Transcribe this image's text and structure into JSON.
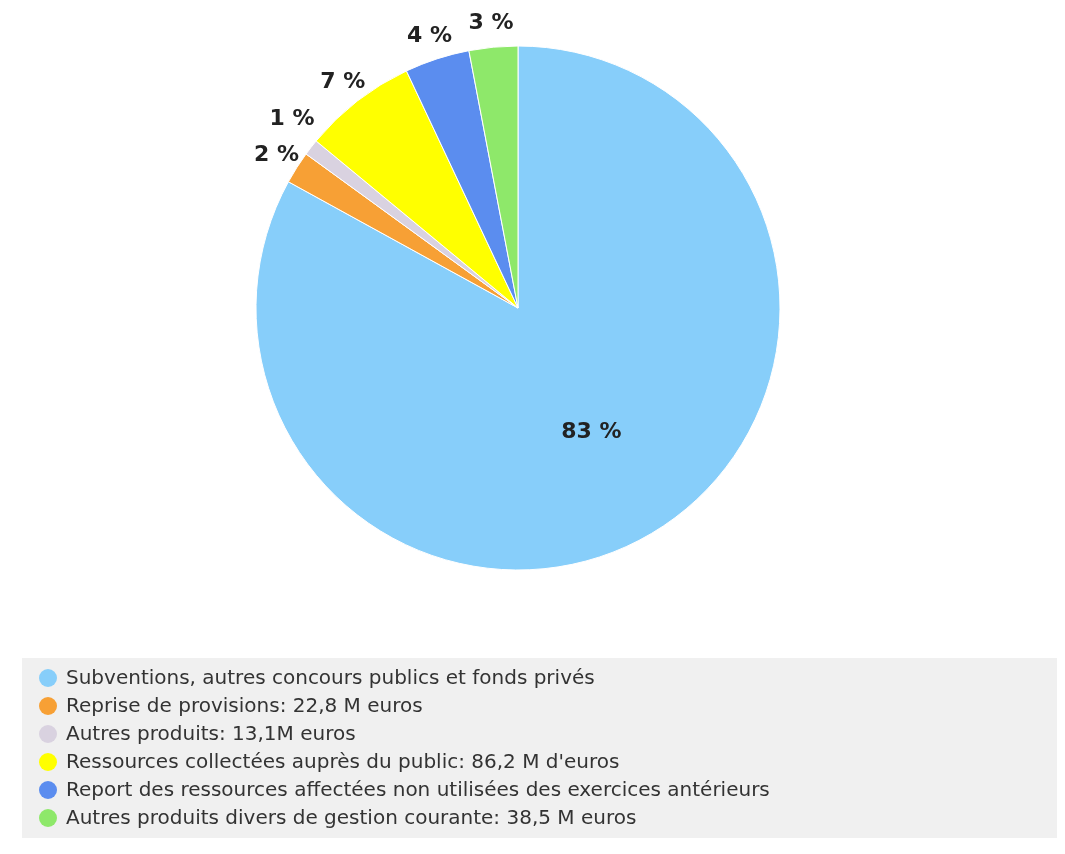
{
  "chart_data": {
    "type": "pie",
    "categories": [
      "Subventions, autres concours publics et fonds privés",
      "Reprise de provisions: 22,8 M euros",
      "Autres produits: 13,1M euros",
      "Ressources collectées auprès du public: 86,2 M d'euros",
      "Report des ressources affectées non utilisées des exercices antérieurs",
      "Autres produits divers de gestion courante: 38,5 M euros"
    ],
    "values": [
      83,
      2,
      1,
      7,
      4,
      3
    ],
    "colors": [
      "#87cefa",
      "#f7a035",
      "#d9d2e0",
      "#ffff00",
      "#5b8def",
      "#8ee86a"
    ],
    "value_labels": [
      "83 %",
      "2 %",
      "1 %",
      "7 %",
      "4 %",
      "3 %"
    ],
    "legend": "bottom"
  }
}
